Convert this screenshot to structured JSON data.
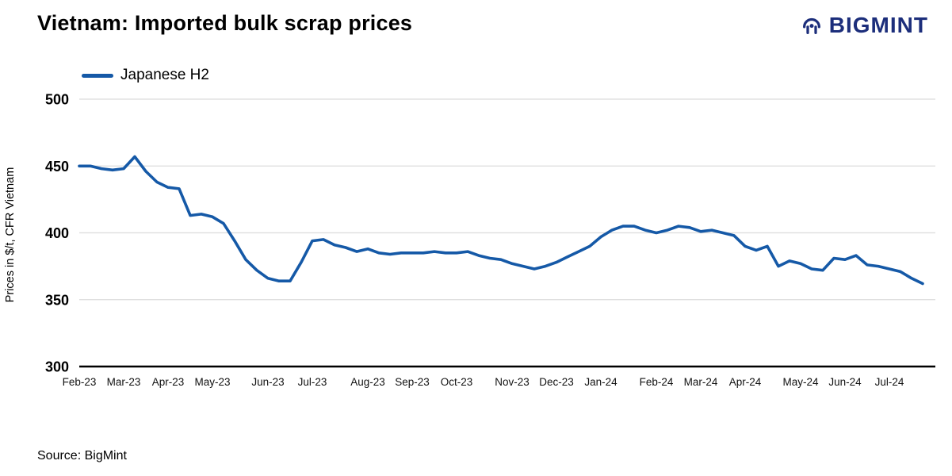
{
  "header": {
    "title": "Vietnam: Imported bulk scrap prices",
    "brand": "BIGMINT"
  },
  "source": "Source: BigMint",
  "chart_data": {
    "type": "line",
    "title": "Vietnam: Imported bulk scrap prices",
    "xlabel": "",
    "ylabel": "Prices in $/t, CFR Vietnam",
    "ylim": [
      300,
      500
    ],
    "yticks": [
      300,
      350,
      400,
      450,
      500
    ],
    "grid": "horizontal",
    "legend_position": "top-left",
    "x_tick_labels": [
      "Feb-23",
      "Mar-23",
      "Apr-23",
      "May-23",
      "Jun-23",
      "Jul-23",
      "Aug-23",
      "Sep-23",
      "Oct-23",
      "Nov-23",
      "Dec-23",
      "Jan-24",
      "Feb-24",
      "Mar-24",
      "Apr-24",
      "May-24",
      "Jun-24",
      "Jul-24"
    ],
    "month_start_indices": [
      0,
      4,
      8,
      12,
      17,
      21,
      26,
      30,
      34,
      39,
      43,
      47,
      52,
      56,
      60,
      65,
      69,
      73
    ],
    "series": [
      {
        "name": "Japanese H2",
        "color": "#1559a7",
        "frequency": "weekly",
        "values": [
          450,
          450,
          448,
          447,
          448,
          457,
          446,
          438,
          434,
          433,
          413,
          414,
          412,
          407,
          394,
          380,
          372,
          366,
          364,
          364,
          378,
          394,
          395,
          391,
          389,
          386,
          388,
          385,
          384,
          385,
          385,
          385,
          386,
          385,
          385,
          386,
          383,
          381,
          380,
          377,
          375,
          373,
          375,
          378,
          382,
          386,
          390,
          397,
          402,
          405,
          405,
          402,
          400,
          402,
          405,
          404,
          401,
          402,
          400,
          398,
          390,
          387,
          390,
          375,
          379,
          377,
          373,
          372,
          381,
          380,
          383,
          376,
          375,
          373,
          371,
          366,
          362
        ]
      }
    ]
  }
}
